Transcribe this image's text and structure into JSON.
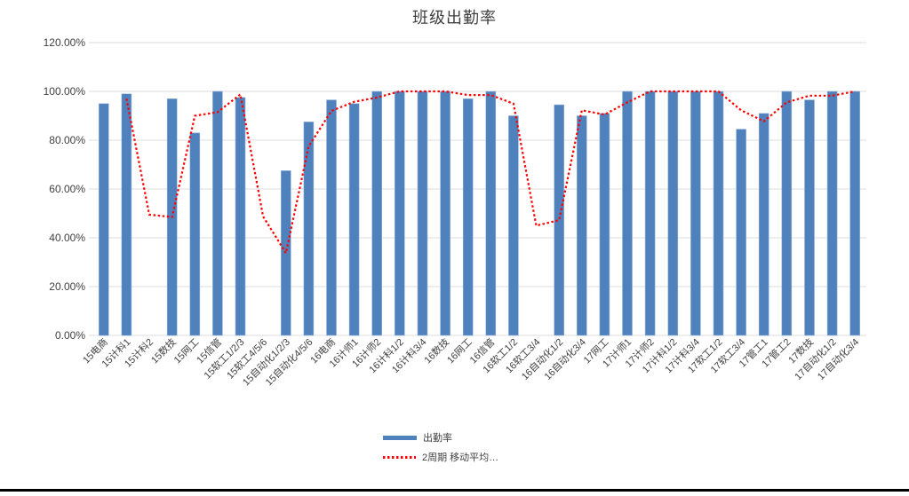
{
  "title": "班级出勤率",
  "legend": {
    "series1": "出勤率",
    "series2": "2周期 移动平均…"
  },
  "colors": {
    "bar": "#4F81BD",
    "bar_edge": "#95B3D7",
    "line": "#FF0000",
    "gridline": "#DCDCDC",
    "axis_text": "#404040",
    "title_text": "#404040"
  },
  "chart_data": {
    "type": "bar",
    "title": "班级出勤率",
    "xlabel": "",
    "ylabel": "",
    "ylim": [
      0,
      120
    ],
    "grid": true,
    "legend_position": "bottom",
    "ytick_values": [
      0,
      20,
      40,
      60,
      80,
      100,
      120
    ],
    "ytick_labels": [
      "0.00%",
      "20.00%",
      "40.00%",
      "60.00%",
      "80.00%",
      "100.00%",
      "120.00%"
    ],
    "categories": [
      "15电商",
      "15计科1",
      "15计科2",
      "15数技",
      "15网工",
      "15信管",
      "15软工1/2/3",
      "15软工4/5/6",
      "15自动化1/2/3",
      "15自动化4/5/6",
      "16电商",
      "16计师1",
      "16计师2",
      "16计科1/2",
      "16计科3/4",
      "16数技",
      "16网工",
      "16信管",
      "16软工1/2",
      "16软工3/4",
      "16自动化1/2",
      "16自动化3/4",
      "17网工",
      "17计师1",
      "17计师2",
      "17计科1/2",
      "17计科3/4",
      "17软工1/2",
      "17软工3/4",
      "17管工1",
      "17管工2",
      "17数技",
      "17自动化1/2",
      "17自动化3/4"
    ],
    "series": [
      {
        "name": "出勤率",
        "type": "bar",
        "values": [
          95,
          99,
          0,
          97,
          83,
          100,
          97.5,
          0,
          67.5,
          87.5,
          96.5,
          95,
          100,
          100,
          100,
          100,
          97,
          100,
          90,
          0,
          94.5,
          90,
          91,
          100,
          100,
          100,
          100,
          100,
          84.5,
          91,
          100,
          96.5,
          100,
          100
        ]
      },
      {
        "name": "2周期 移动平均…",
        "type": "line",
        "values": [
          null,
          97,
          49.5,
          48.5,
          90,
          91.5,
          98.75,
          48.75,
          33.75,
          77.5,
          92,
          95.75,
          97.5,
          100,
          100,
          100,
          98.5,
          98.5,
          95,
          45,
          47.25,
          92.25,
          90.5,
          95.5,
          100,
          100,
          100,
          100,
          92.25,
          87.75,
          95.5,
          98.25,
          98.25,
          100
        ]
      }
    ]
  }
}
